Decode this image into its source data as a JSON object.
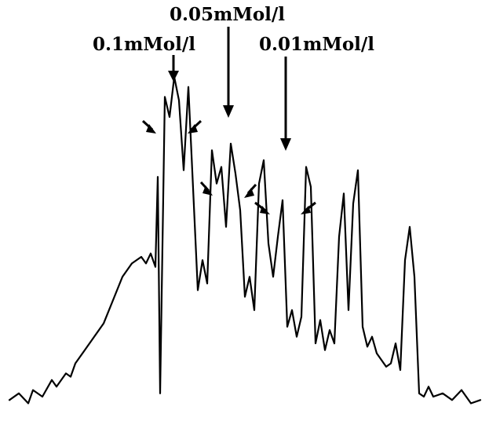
{
  "chart_data": {
    "type": "line",
    "title": "",
    "xlabel": "",
    "ylabel": "",
    "grid": false,
    "annotations": [
      {
        "text": "0.05mMol/l"
      },
      {
        "text": "0.1mMol/l"
      },
      {
        "text": "0.01mMol/l"
      }
    ],
    "series": [
      {
        "color": "#000000",
        "x": [
          0,
          2,
          4,
          5,
          7,
          9,
          10,
          12,
          13,
          14,
          16,
          18,
          20,
          22,
          24,
          26,
          28,
          29,
          30,
          31,
          31.5,
          32,
          33,
          34,
          35,
          36,
          37,
          38,
          40,
          41,
          42,
          43,
          44,
          45,
          46,
          47,
          48,
          49,
          50,
          51,
          52,
          53,
          54,
          55,
          56,
          57,
          58,
          59,
          60,
          61,
          62,
          63,
          64,
          65,
          66,
          67,
          68,
          69,
          70,
          71,
          72,
          73,
          74,
          75,
          76,
          77,
          78,
          79,
          80,
          81,
          82,
          83,
          84,
          85,
          86,
          87,
          88,
          89,
          90,
          92,
          94,
          96,
          98,
          100
        ],
        "y": [
          0.03,
          0.05,
          0.02,
          0.06,
          0.04,
          0.09,
          0.07,
          0.11,
          0.1,
          0.14,
          0.18,
          0.22,
          0.26,
          0.33,
          0.4,
          0.44,
          0.46,
          0.44,
          0.47,
          0.43,
          0.7,
          0.05,
          0.94,
          0.88,
          1.0,
          0.93,
          0.72,
          0.97,
          0.36,
          0.45,
          0.38,
          0.78,
          0.68,
          0.73,
          0.55,
          0.8,
          0.71,
          0.6,
          0.34,
          0.4,
          0.3,
          0.68,
          0.75,
          0.5,
          0.4,
          0.52,
          0.63,
          0.25,
          0.3,
          0.22,
          0.28,
          0.73,
          0.67,
          0.2,
          0.27,
          0.18,
          0.24,
          0.2,
          0.52,
          0.65,
          0.3,
          0.62,
          0.72,
          0.25,
          0.19,
          0.22,
          0.17,
          0.15,
          0.13,
          0.14,
          0.2,
          0.12,
          0.45,
          0.55,
          0.4,
          0.05,
          0.04,
          0.07,
          0.04,
          0.05,
          0.03,
          0.06,
          0.02,
          0.03
        ]
      }
    ]
  }
}
